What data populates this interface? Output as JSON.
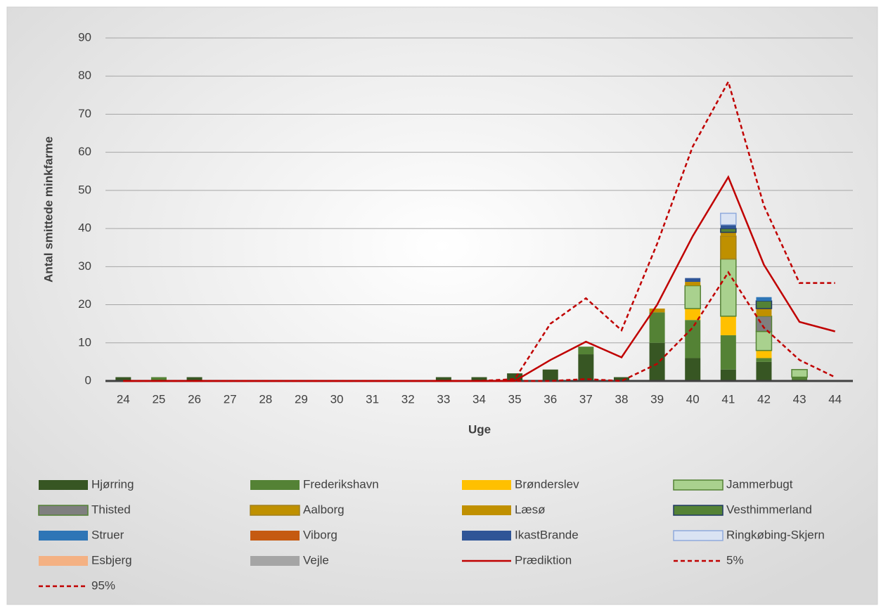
{
  "chart_data": {
    "type": "bar",
    "stacked": true,
    "x_label": "Uge",
    "y_label": "Antal smittede minkfarme",
    "categories": [
      "24",
      "25",
      "26",
      "27",
      "28",
      "29",
      "30",
      "31",
      "32",
      "33",
      "34",
      "35",
      "36",
      "37",
      "38",
      "39",
      "40",
      "41",
      "42",
      "43",
      "44"
    ],
    "ylim": [
      0,
      90
    ],
    "yticks": [
      0,
      10,
      20,
      30,
      40,
      50,
      60,
      70,
      80,
      90
    ],
    "grid": true,
    "series": [
      {
        "name": "Hjørring",
        "color": "#375623",
        "values": [
          1,
          0,
          1,
          0,
          0,
          0,
          0,
          0,
          0,
          1,
          1,
          2,
          3,
          7,
          1,
          10,
          6,
          3,
          5,
          0,
          0
        ]
      },
      {
        "name": "Frederikshavn",
        "color": "#548235",
        "values": [
          0,
          1,
          0,
          0,
          0,
          0,
          0,
          0,
          0,
          0,
          0,
          0,
          0,
          2,
          0,
          8,
          10,
          9,
          1,
          1,
          0
        ]
      },
      {
        "name": "Brønderslev",
        "color": "#ffc000",
        "values": [
          0,
          0,
          0,
          0,
          0,
          0,
          0,
          0,
          0,
          0,
          0,
          0,
          0,
          0,
          0,
          0,
          3,
          5,
          2,
          0,
          0
        ]
      },
      {
        "name": "Jammerbugt",
        "color": "#a9d18e",
        "border": "#548235",
        "values": [
          0,
          0,
          0,
          0,
          0,
          0,
          0,
          0,
          0,
          0,
          0,
          0,
          0,
          0,
          0,
          0,
          6,
          15,
          5,
          2,
          0
        ]
      },
      {
        "name": "Thisted",
        "color": "#7f7f7f",
        "border": "#548235",
        "values": [
          0,
          0,
          0,
          0,
          0,
          0,
          0,
          0,
          0,
          0,
          0,
          0,
          0,
          0,
          0,
          0,
          0,
          0,
          4,
          0,
          0
        ]
      },
      {
        "name": "Aalborg",
        "color": "#bf9000",
        "border": "#a08020",
        "values": [
          0,
          0,
          0,
          0,
          0,
          0,
          0,
          0,
          0,
          0,
          0,
          0,
          0,
          0,
          0,
          0,
          0,
          6,
          0,
          0,
          0
        ]
      },
      {
        "name": "Læsø",
        "color": "#c09000",
        "values": [
          0,
          0,
          0,
          0,
          0,
          0,
          0,
          0,
          0,
          0,
          0,
          0,
          0,
          0,
          0,
          1,
          1,
          1,
          2,
          0,
          0
        ]
      },
      {
        "name": "Vesthimmerland",
        "color": "#548235",
        "border": "#1f3864",
        "values": [
          0,
          0,
          0,
          0,
          0,
          0,
          0,
          0,
          0,
          0,
          0,
          0,
          0,
          0,
          0,
          0,
          0,
          1,
          2,
          0,
          0
        ]
      },
      {
        "name": "Struer",
        "color": "#2e75b6",
        "values": [
          0,
          0,
          0,
          0,
          0,
          0,
          0,
          0,
          0,
          0,
          0,
          0,
          0,
          0,
          0,
          0,
          0,
          0,
          1,
          0,
          0
        ]
      },
      {
        "name": "Viborg",
        "color": "#c55a11",
        "values": [
          0,
          0,
          0,
          0,
          0,
          0,
          0,
          0,
          0,
          0,
          0,
          0,
          0,
          0,
          0,
          0,
          0,
          0,
          0,
          0,
          0
        ]
      },
      {
        "name": "IkastBrande",
        "color": "#2f5597",
        "values": [
          0,
          0,
          0,
          0,
          0,
          0,
          0,
          0,
          0,
          0,
          0,
          0,
          0,
          0,
          0,
          0,
          1,
          1,
          0,
          0,
          0
        ]
      },
      {
        "name": "Ringkøbing-Skjern",
        "color": "#dae3f3",
        "border": "#8faadc",
        "values": [
          0,
          0,
          0,
          0,
          0,
          0,
          0,
          0,
          0,
          0,
          0,
          0,
          0,
          0,
          0,
          0,
          0,
          3,
          0,
          0,
          0
        ]
      },
      {
        "name": "Esbjerg",
        "color": "#f4b183",
        "values": [
          0,
          0,
          0,
          0,
          0,
          0,
          0,
          0,
          0,
          0,
          0,
          0,
          0,
          0,
          0,
          0,
          0,
          0,
          0,
          0,
          0
        ]
      },
      {
        "name": "Vejle",
        "color": "#a5a5a5",
        "values": [
          0,
          0,
          0,
          0,
          0,
          0,
          0,
          0,
          0,
          0,
          0,
          0,
          0,
          0,
          0,
          0,
          0,
          0,
          0,
          0,
          0
        ]
      }
    ],
    "lines": [
      {
        "name": "Prædiktion",
        "color": "#c00000",
        "dashed": false,
        "values": [
          0,
          0,
          0,
          0,
          0,
          0,
          0,
          0,
          0,
          0,
          0,
          0,
          5.5,
          10.3,
          6.2,
          20,
          38,
          53.5,
          30.5,
          15.5,
          13
        ]
      },
      {
        "name": "5%",
        "color": "#c00000",
        "dashed": true,
        "values": [
          0,
          0,
          0,
          0,
          0,
          0,
          0,
          0,
          0,
          0,
          0,
          0,
          0,
          0.5,
          0,
          4.5,
          14,
          28.5,
          14,
          5.5,
          1
        ]
      },
      {
        "name": "95%",
        "color": "#c00000",
        "dashed": true,
        "values": [
          0,
          0,
          0,
          0,
          0,
          0,
          0,
          0,
          0,
          0,
          0,
          0.5,
          15,
          21.7,
          13.3,
          36,
          61.5,
          78.5,
          46,
          25.7,
          25.7
        ]
      }
    ]
  }
}
